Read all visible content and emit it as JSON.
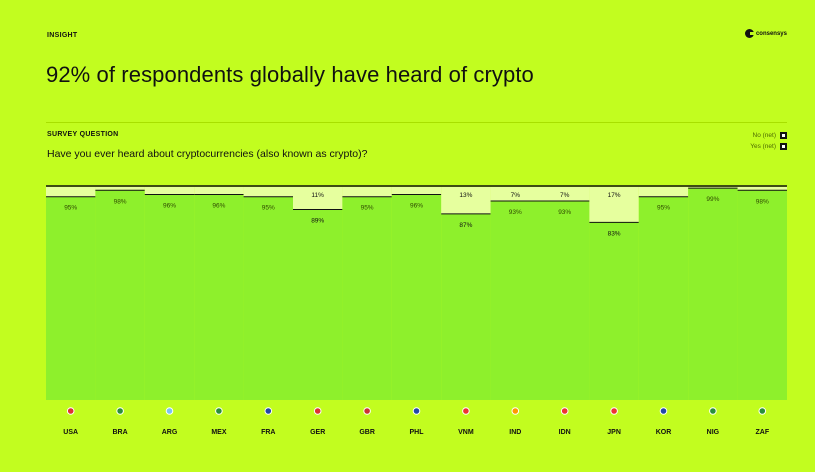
{
  "header": {
    "label": "INSIGHT",
    "logo_text": "consensys"
  },
  "headline": "92% of respondents globally have heard of crypto",
  "question": {
    "label": "SURVEY QUESTION",
    "text": "Have you ever heard about cryptocurrencies (also known as crypto)?"
  },
  "legend": [
    {
      "label": "No (net)",
      "key": "no"
    },
    {
      "label": "Yes (net)",
      "key": "yes"
    }
  ],
  "colors": {
    "background": "#c2fd1f",
    "yes": "#8ef02c",
    "no": "#e6ff9e"
  },
  "chart_data": {
    "type": "bar",
    "stacked": true,
    "categories": [
      "USA",
      "BRA",
      "ARG",
      "MEX",
      "FRA",
      "GER",
      "GBR",
      "PHL",
      "VNM",
      "IND",
      "IDN",
      "JPN",
      "KOR",
      "NIG",
      "ZAF"
    ],
    "flags": [
      "flag-usa-icon",
      "flag-bra-icon",
      "flag-arg-icon",
      "flag-mex-icon",
      "flag-fra-icon",
      "flag-ger-icon",
      "flag-gbr-icon",
      "flag-phl-icon",
      "flag-vnm-icon",
      "flag-ind-icon",
      "flag-idn-icon",
      "flag-jpn-icon",
      "flag-kor-icon",
      "flag-nig-icon",
      "flag-zaf-icon"
    ],
    "series": [
      {
        "name": "Yes (net)",
        "values": [
          95,
          98,
          96,
          96,
          95,
          89,
          95,
          96,
          87,
          93,
          93,
          83,
          95,
          99,
          98
        ],
        "labels": [
          "95%",
          "98%",
          "96%",
          "96%",
          "95%",
          "89%",
          "95%",
          "96%",
          "87%",
          "93%",
          "93%",
          "83%",
          "95%",
          "99%",
          "98%"
        ]
      },
      {
        "name": "No (net)",
        "values": [
          5,
          2,
          4,
          4,
          5,
          11,
          5,
          4,
          13,
          7,
          7,
          17,
          5,
          1,
          2
        ],
        "labels": [
          "",
          "",
          "",
          "",
          "",
          "11%",
          "",
          "",
          "13%",
          "7%",
          "7%",
          "17%",
          "",
          "",
          ""
        ]
      }
    ],
    "ylim": [
      0,
      100
    ]
  }
}
